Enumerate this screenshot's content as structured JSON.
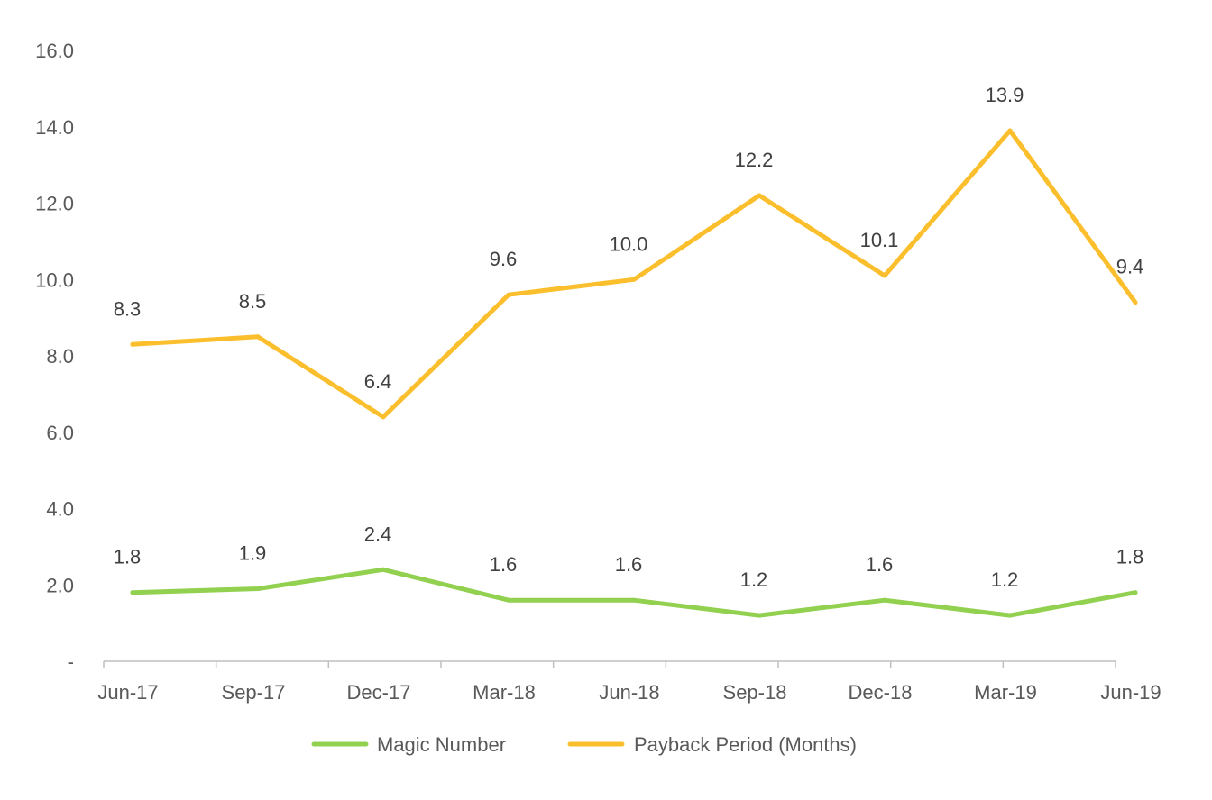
{
  "chart_data": {
    "type": "line",
    "categories": [
      "Jun-17",
      "Sep-17",
      "Dec-17",
      "Mar-18",
      "Jun-18",
      "Sep-18",
      "Dec-18",
      "Mar-19",
      "Jun-19"
    ],
    "series": [
      {
        "name": "Magic Number",
        "color": "#92D050",
        "values": [
          1.8,
          1.9,
          2.4,
          1.6,
          1.6,
          1.2,
          1.6,
          1.2,
          1.8
        ],
        "labels": [
          "1.8",
          "1.9",
          "2.4",
          "1.6",
          "1.6",
          "1.2",
          "1.6",
          "1.2",
          "1.8"
        ]
      },
      {
        "name": "Payback Period (Months)",
        "color": "#FBBF2E",
        "values": [
          8.3,
          8.5,
          6.4,
          9.6,
          10.0,
          12.2,
          10.1,
          13.9,
          9.4
        ],
        "labels": [
          "8.3",
          "8.5",
          "6.4",
          "9.6",
          "10.0",
          "12.2",
          "10.1",
          "13.9",
          "9.4"
        ]
      }
    ],
    "yticks": [
      "-",
      "2.0",
      "4.0",
      "6.0",
      "8.0",
      "10.0",
      "12.0",
      "14.0",
      "16.0"
    ],
    "ylim": [
      0,
      16
    ],
    "grid": false,
    "legend_position": "bottom",
    "title": "",
    "xlabel": "",
    "ylabel": ""
  }
}
